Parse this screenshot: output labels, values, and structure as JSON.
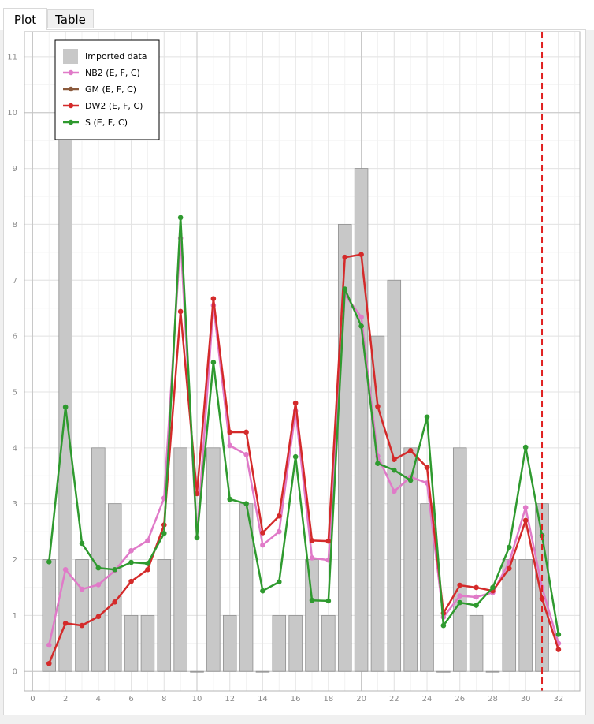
{
  "tabs": [
    {
      "label": "Plot",
      "active": true
    },
    {
      "label": "Table",
      "active": false
    }
  ],
  "chart_data": {
    "type": "bar+line",
    "title": "",
    "xlabel": "",
    "ylabel": "",
    "xlim": [
      -0.5,
      33.3
    ],
    "ylim": [
      -0.35,
      11.45
    ],
    "xticks": [
      0,
      2,
      4,
      6,
      8,
      10,
      12,
      14,
      16,
      18,
      20,
      22,
      24,
      26,
      28,
      30,
      32
    ],
    "yticks": [
      0,
      1,
      2,
      3,
      4,
      5,
      6,
      7,
      8,
      9,
      10,
      11
    ],
    "grid": true,
    "legend_position": "top-left",
    "bars": {
      "name": "Imported data",
      "color": "#c8c8c8",
      "x": [
        1,
        2,
        3,
        4,
        5,
        6,
        7,
        8,
        9,
        10,
        11,
        12,
        13,
        14,
        15,
        16,
        17,
        18,
        19,
        20,
        21,
        22,
        23,
        24,
        25,
        26,
        27,
        28,
        29,
        30,
        31
      ],
      "values": [
        2,
        10,
        2,
        4,
        3,
        1,
        1,
        2,
        4,
        0,
        4,
        1,
        3,
        0,
        1,
        1,
        2,
        1,
        8,
        9,
        6,
        7,
        4,
        3,
        0,
        4,
        1,
        0,
        2,
        2,
        3
      ]
    },
    "series": [
      {
        "name": "NB2 (E, F, C)",
        "color": "#e07ac8",
        "x": [
          1,
          2,
          3,
          4,
          5,
          6,
          7,
          8,
          9,
          10,
          11,
          12,
          13,
          14,
          15,
          16,
          17,
          18,
          19,
          20,
          21,
          22,
          23,
          24,
          25,
          26,
          27,
          28,
          29,
          30,
          31,
          32
        ],
        "values": [
          0.47,
          1.82,
          1.47,
          1.55,
          1.8,
          2.16,
          2.34,
          3.1,
          7.75,
          2.4,
          6.55,
          4.04,
          3.88,
          2.26,
          2.5,
          4.66,
          2.03,
          1.99,
          6.74,
          6.34,
          3.85,
          3.22,
          3.48,
          3.37,
          0.97,
          1.35,
          1.33,
          1.41,
          1.95,
          2.93,
          1.5,
          0.5
        ]
      },
      {
        "name": "GM (E, F, C)",
        "color": "#8b5a3c",
        "x": [],
        "values": []
      },
      {
        "name": "DW2 (E, F, C)",
        "color": "#d42a2a",
        "x": [
          1,
          2,
          3,
          4,
          5,
          6,
          7,
          8,
          9,
          10,
          11,
          12,
          13,
          14,
          15,
          16,
          17,
          18,
          19,
          20,
          21,
          22,
          23,
          24,
          25,
          26,
          27,
          28,
          29,
          30,
          31,
          32
        ],
        "values": [
          0.14,
          0.86,
          0.82,
          0.98,
          1.24,
          1.61,
          1.82,
          2.62,
          6.44,
          3.18,
          6.67,
          4.28,
          4.28,
          2.48,
          2.78,
          4.8,
          2.34,
          2.33,
          7.41,
          7.46,
          4.74,
          3.79,
          3.95,
          3.65,
          1.04,
          1.54,
          1.5,
          1.44,
          1.84,
          2.7,
          1.3,
          0.39
        ]
      },
      {
        "name": "S (E, F, C)",
        "color": "#2f9a2f",
        "x": [
          1,
          2,
          3,
          4,
          5,
          6,
          7,
          8,
          9,
          10,
          11,
          12,
          13,
          14,
          15,
          16,
          17,
          18,
          19,
          20,
          21,
          22,
          23,
          24,
          25,
          26,
          27,
          28,
          29,
          30,
          31,
          32
        ],
        "values": [
          1.96,
          4.73,
          2.29,
          1.85,
          1.82,
          1.95,
          1.93,
          2.47,
          8.12,
          2.39,
          5.53,
          3.08,
          3.0,
          1.44,
          1.6,
          3.84,
          1.27,
          1.26,
          6.84,
          6.18,
          3.72,
          3.6,
          3.42,
          4.55,
          0.82,
          1.23,
          1.18,
          1.5,
          2.22,
          4.01,
          2.43,
          0.66
        ]
      }
    ],
    "vline": {
      "x": 31,
      "color": "#e02020",
      "style": "dashed"
    }
  }
}
